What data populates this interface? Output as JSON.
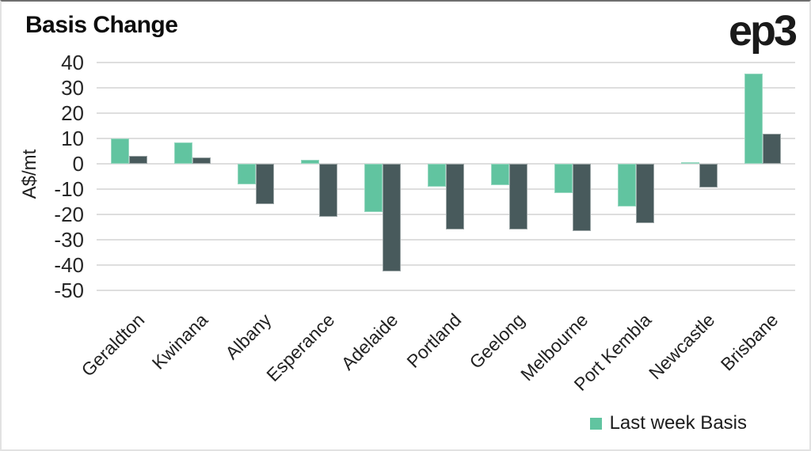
{
  "header": {
    "title": "Basis Change",
    "logo": "ep3"
  },
  "legend": {
    "label": "Last week Basis",
    "swatch_color": "#61c4a0"
  },
  "colors": {
    "last_week_series": "#61c4a0",
    "second_series": "#485a5c",
    "gridline": "#dedede",
    "text": "#222222"
  },
  "chart_data": {
    "type": "bar",
    "title": "Basis Change",
    "xlabel": "",
    "ylabel": "A$/mt",
    "ylim": [
      -50,
      40
    ],
    "yticks": [
      40,
      30,
      20,
      10,
      0,
      -10,
      -20,
      -30,
      -40,
      -50
    ],
    "grid": true,
    "legend_position": "bottom-right",
    "categories": [
      "Geraldton",
      "Kwinana",
      "Albany",
      "Esperance",
      "Adelaide",
      "Portland",
      "Geelong",
      "Melbourne",
      "Port Kembla",
      "Newcastle",
      "Brisbane"
    ],
    "series": [
      {
        "name": "Last week Basis",
        "in_legend": true,
        "color": "#61c4a0",
        "values": [
          10,
          8.5,
          -8,
          1.5,
          -19,
          -9,
          -8.5,
          -11.5,
          -17,
          0.5,
          35.5
        ]
      },
      {
        "name": "",
        "in_legend": false,
        "color": "#485a5c",
        "values": [
          3,
          2.5,
          -16,
          -21,
          -42.5,
          -26,
          -26,
          -26.5,
          -23.5,
          -9.5,
          12
        ]
      }
    ]
  }
}
